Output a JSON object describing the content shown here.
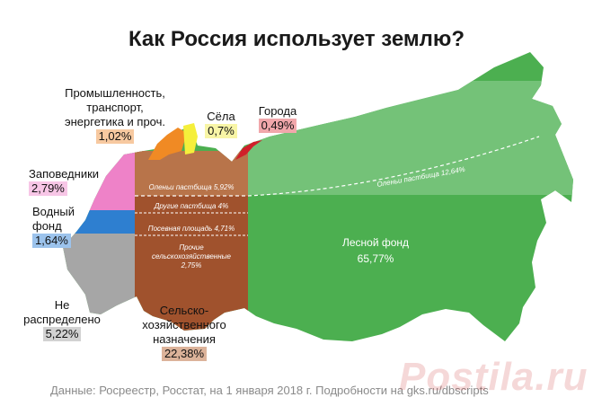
{
  "title": "Как Россия использует землю?",
  "footer": "Данные: Росреестр, Росстат, на 1 января 2018 г. Подробности на gks.ru/dbscripts",
  "watermark": "Postila.ru",
  "chart_data": {
    "type": "treemap-map",
    "title": "Как Россия использует землю?",
    "unit": "%",
    "categories": [
      {
        "key": "forest",
        "label": "Лесной фонд",
        "value": 65.77,
        "value_label": "65,77%",
        "color": "#4caf50"
      },
      {
        "key": "agri",
        "label": "Сельско-хозяйственного назначения",
        "value": 22.38,
        "value_label": "22,38%",
        "color": "#a0522d"
      },
      {
        "key": "unalloc",
        "label": "Не распределено",
        "value": 5.22,
        "value_label": "5,22%",
        "color": "#a6a6a6"
      },
      {
        "key": "reserves",
        "label": "Заповедники",
        "value": 2.79,
        "value_label": "2,79%",
        "color": "#ee82c8"
      },
      {
        "key": "water",
        "label": "Водный фонд",
        "value": 1.64,
        "value_label": "1,64%",
        "color": "#2e7fd0"
      },
      {
        "key": "industry",
        "label": "Промышленность, транспорт, энергетика и проч.",
        "value": 1.02,
        "value_label": "1,02%",
        "color": "#f08a24"
      },
      {
        "key": "villages",
        "label": "Сёла",
        "value": 0.7,
        "value_label": "0,7%",
        "color": "#f5ef3b"
      },
      {
        "key": "cities",
        "label": "Города",
        "value": 0.49,
        "value_label": "0,49%",
        "color": "#d0202a"
      }
    ],
    "subcategories": [
      {
        "label": "Оленьи пастбища",
        "value": 12.64,
        "value_label": "12,64%",
        "parent": "forest"
      },
      {
        "label": "Оленьи пастбища",
        "value": 5.92,
        "value_label": "5,92%",
        "parent": "agri"
      },
      {
        "label": "Другие пастбища",
        "value": 4,
        "value_label": "4%",
        "parent": "agri"
      },
      {
        "label": "Посевная площадь",
        "value": 4.71,
        "value_label": "4,71%",
        "parent": "agri"
      },
      {
        "label": "Прочие сельскохозяйственные",
        "value": 2.75,
        "value_label": "2,75%",
        "parent": "agri"
      }
    ]
  },
  "labels": {
    "industry_line1": "Промышленность,",
    "industry_line2": "транспорт,",
    "industry_line3": "энергетика и проч.",
    "villages": "Сёла",
    "cities": "Города",
    "reserves": "Заповедники",
    "water_line1": "Водный",
    "water_line2": "фонд",
    "unalloc_line1": "Не",
    "unalloc_line2": "распределено",
    "agri_line1": "Сельско-",
    "agri_line2": "хозяйственного",
    "agri_line3": "назначения",
    "forest": "Лесной фонд",
    "reindeer_forest": "Оленьи пастбища 12,64%",
    "reindeer_agri": "Оленьи пастбища 5,92%",
    "other_pasture": "Другие пастбища 4%",
    "sown": "Посевная площадь 4,71%",
    "other_agri_line1": "Прочие",
    "other_agri_line2": "сельскохозяйственные",
    "other_agri_line3": "2,75%"
  }
}
